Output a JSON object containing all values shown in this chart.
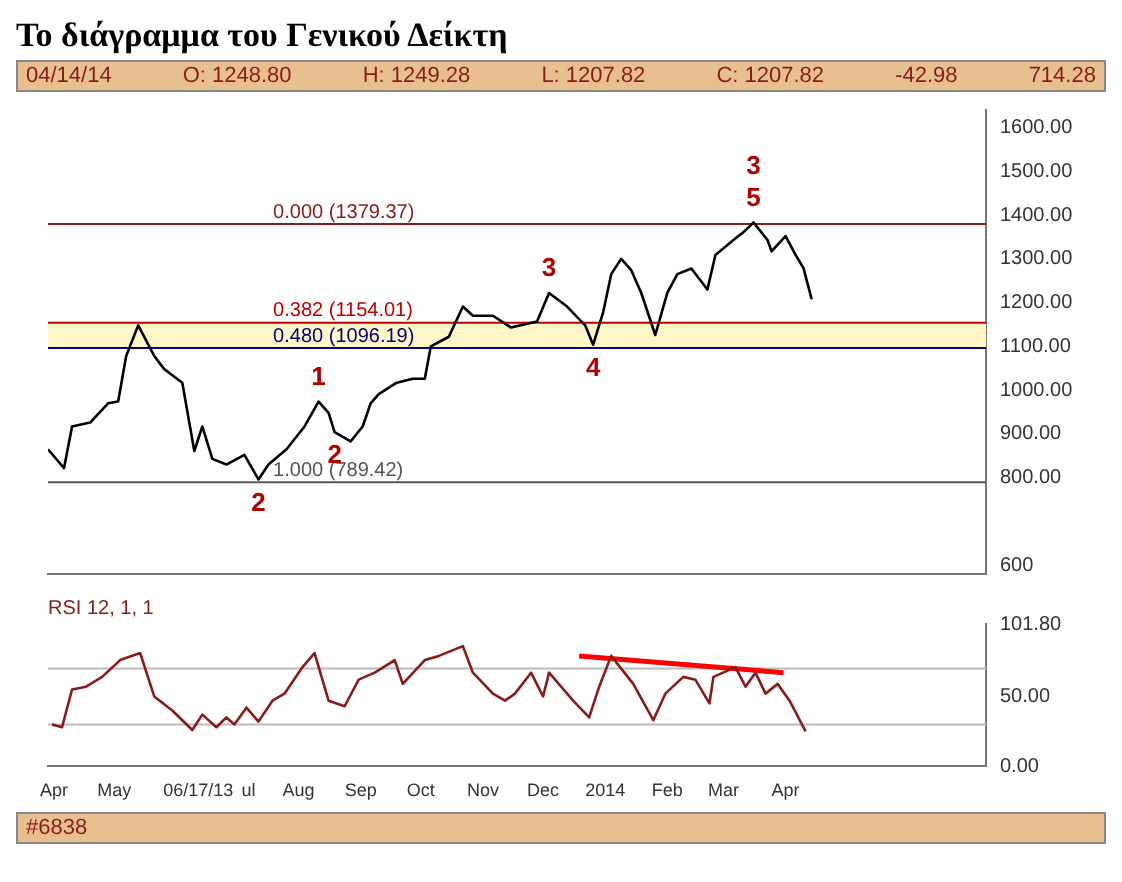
{
  "chart_data": [
    {
      "type": "line",
      "title": "Το διάγραμμα του Γενικού Δείκτη",
      "series": [
        {
          "color": "#000000",
          "x": [
            "2013-03-29",
            "2013-04-06",
            "2013-04-10",
            "2013-04-19",
            "2013-04-28",
            "2013-05-03",
            "2013-05-07",
            "2013-05-13",
            "2013-05-17",
            "2013-05-21",
            "2013-05-26",
            "2013-06-04",
            "2013-06-10",
            "2013-06-14",
            "2013-06-19",
            "2013-06-26",
            "2013-07-05",
            "2013-07-12",
            "2013-07-17",
            "2013-07-26",
            "2013-08-04",
            "2013-08-11",
            "2013-08-16",
            "2013-08-19",
            "2013-08-27",
            "2013-09-02",
            "2013-09-06",
            "2013-09-10",
            "2013-09-19",
            "2013-09-27",
            "2013-10-03",
            "2013-10-06",
            "2013-10-15",
            "2013-10-22",
            "2013-10-27",
            "2013-11-06",
            "2013-11-15",
            "2013-11-28",
            "2013-12-04",
            "2013-12-13",
            "2013-12-22",
            "2013-12-26",
            "2013-12-31",
            "2014-01-04",
            "2014-01-09",
            "2014-01-14",
            "2014-01-19",
            "2014-01-26",
            "2014-02-01",
            "2014-02-06",
            "2014-02-13",
            "2014-02-21",
            "2014-02-25",
            "2014-03-06",
            "2014-03-11",
            "2014-03-16",
            "2014-03-23",
            "2014-03-25",
            "2014-04-01",
            "2014-04-06",
            "2014-04-10",
            "2014-04-14"
          ],
          "values": [
            865,
            822,
            917,
            926,
            970,
            974,
            1078,
            1148,
            1113,
            1078,
            1048,
            1017,
            861,
            917,
            843,
            830,
            852,
            796,
            830,
            865,
            917,
            974,
            948,
            904,
            883,
            917,
            970,
            991,
            1017,
            1026,
            1026,
            1100,
            1122,
            1191,
            1170,
            1170,
            1143,
            1157,
            1222,
            1191,
            1148,
            1104,
            1178,
            1265,
            1300,
            1274,
            1222,
            1126,
            1222,
            1265,
            1278,
            1230,
            1309,
            1343,
            1361,
            1383,
            1343,
            1317,
            1352,
            1309,
            1278,
            1208
          ]
        }
      ],
      "xlim": [
        "2013-03-29",
        "2014-07-10"
      ],
      "ylim": [
        580,
        1640
      ],
      "yticks": [
        {
          "value": 600,
          "label": "600"
        },
        {
          "value": 800,
          "label": "800.00"
        },
        {
          "value": 900,
          "label": "900.00"
        },
        {
          "value": 1000,
          "label": "1000.00"
        },
        {
          "value": 1100,
          "label": "1100.00"
        },
        {
          "value": 1200,
          "label": "1200.00"
        },
        {
          "value": 1300,
          "label": "1300.00"
        },
        {
          "value": 1400,
          "label": "1400.00"
        },
        {
          "value": 1500,
          "label": "1500.00"
        },
        {
          "value": 1600,
          "label": "1600.00"
        }
      ],
      "tick_labels": "y",
      "bands": [
        {
          "axis": "y",
          "from": 1096.19,
          "to": 1154.01,
          "color": "#fff7c8"
        }
      ],
      "ref_lines": [
        {
          "axis": "y",
          "value": 1379.37,
          "label": "0.000 (1379.37)",
          "color": "#8b1a1a"
        },
        {
          "axis": "y",
          "value": 1154.01,
          "label": "0.382 (1154.01)",
          "color": "#c00000"
        },
        {
          "axis": "y",
          "value": 1096.19,
          "label": "0.480 (1096.19)",
          "color": "#000080"
        },
        {
          "axis": "y",
          "value": 789.42,
          "label": "1.000 (789.42)",
          "color": "#555555"
        }
      ],
      "annotations": [
        "04/14/14",
        "O: 1248.80",
        "H: 1249.28",
        "L: 1207.82",
        "C: 1207.82",
        "-42.98",
        "714.28",
        {
          "text": "3",
          "x": "2014-03-16",
          "y": 1383
        },
        {
          "text": "5",
          "x": "2014-03-16",
          "y": 1383
        },
        {
          "text": "3",
          "x": "2013-12-04",
          "y": 1222
        },
        {
          "text": "4",
          "x": "2013-12-26",
          "y": 1104
        },
        {
          "text": "1",
          "x": "2013-08-11",
          "y": 974
        },
        {
          "text": "2",
          "x": "2013-08-19",
          "y": 904
        },
        {
          "text": "2",
          "x": "2013-07-12",
          "y": 796
        }
      ]
    },
    {
      "type": "line",
      "title": "RSI 12, 1, 1",
      "series": [
        {
          "color": "#8b1a1a",
          "x": [
            "2013-03-31",
            "2013-04-05",
            "2013-04-10",
            "2013-04-17",
            "2013-04-25",
            "2013-05-04",
            "2013-05-14",
            "2013-05-21",
            "2013-05-30",
            "2013-06-09",
            "2013-06-14",
            "2013-06-21",
            "2013-06-26",
            "2013-06-30",
            "2013-07-06",
            "2013-07-12",
            "2013-07-19",
            "2013-07-25",
            "2013-08-03",
            "2013-08-09",
            "2013-08-16",
            "2013-08-24",
            "2013-08-31",
            "2013-09-08",
            "2013-09-18",
            "2013-09-22",
            "2013-10-03",
            "2013-10-10",
            "2013-10-22",
            "2013-10-27",
            "2013-11-06",
            "2013-11-12",
            "2013-11-17",
            "2013-11-25",
            "2013-12-01",
            "2013-12-04",
            "2013-12-16",
            "2013-12-24",
            "2013-12-29",
            "2014-01-04",
            "2014-01-15",
            "2014-01-25",
            "2014-01-31",
            "2014-02-09",
            "2014-02-15",
            "2014-02-22",
            "2014-02-24",
            "2014-03-07",
            "2014-03-12",
            "2014-03-17",
            "2014-03-22",
            "2014-03-28",
            "2014-04-03",
            "2014-04-11"
          ],
          "values": [
            30,
            28,
            55,
            57,
            64,
            76,
            81,
            50,
            40,
            26,
            37,
            28,
            35,
            30,
            42,
            32,
            47,
            52,
            71,
            81,
            47,
            43,
            62,
            67,
            76,
            59,
            76,
            79,
            86,
            67,
            52,
            47,
            52,
            67,
            50,
            67,
            47,
            35,
            57,
            79,
            59,
            33,
            52,
            64,
            62,
            45,
            64,
            71,
            57,
            67,
            52,
            59,
            47,
            25
          ]
        },
        {
          "type": "line",
          "color": "#ff0000",
          "x": [
            "2013-12-19",
            "2014-03-31"
          ],
          "values": [
            79,
            67
          ]
        }
      ],
      "xlim": [
        "2013-03-29",
        "2014-07-10"
      ],
      "xticks": [
        {
          "value": "2013-04-01",
          "label": "Apr"
        },
        {
          "value": "2013-05-01",
          "label": "May"
        },
        {
          "value": "2013-06-12",
          "label": "06/17/13"
        },
        {
          "value": "2013-07-07",
          "label": "ul"
        },
        {
          "value": "2013-08-01",
          "label": "Aug"
        },
        {
          "value": "2013-09-01",
          "label": "Sep"
        },
        {
          "value": "2013-10-01",
          "label": "Oct"
        },
        {
          "value": "2013-11-01",
          "label": "Nov"
        },
        {
          "value": "2013-12-01",
          "label": "Dec"
        },
        {
          "value": "2014-01-01",
          "label": "2014"
        },
        {
          "value": "2014-02-01",
          "label": "Feb"
        },
        {
          "value": "2014-03-01",
          "label": "Mar"
        },
        {
          "value": "2014-04-01",
          "label": "Apr"
        }
      ],
      "ylim": [
        0,
        101.8
      ],
      "yticks": [
        {
          "value": 0,
          "label": "0.00"
        },
        {
          "value": 50,
          "label": "50.00"
        },
        {
          "value": 101.8,
          "label": "101.80"
        }
      ],
      "ref_lines": [
        {
          "axis": "y",
          "value": 70,
          "color": "#bbbbbb"
        },
        {
          "axis": "y",
          "value": 30,
          "color": "#bbbbbb"
        }
      ],
      "annotations": [
        "#6838"
      ]
    }
  ]
}
